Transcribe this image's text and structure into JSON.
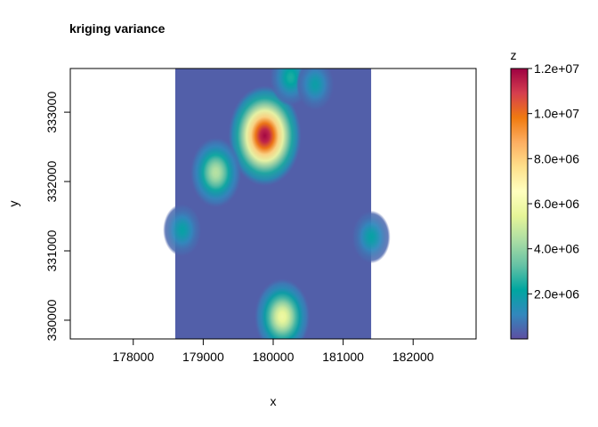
{
  "chart_data": {
    "type": "heatmap",
    "title": "kriging variance",
    "xlabel": "x",
    "ylabel": "y",
    "xlim": [
      177100,
      182900
    ],
    "ylim": [
      329730,
      333630
    ],
    "x_ticks": [
      178000,
      179000,
      180000,
      181000,
      182000
    ],
    "y_ticks": [
      330000,
      331000,
      332000,
      333000
    ],
    "x_tick_labels": [
      "178000",
      "179000",
      "180000",
      "181000",
      "182000"
    ],
    "y_tick_labels": [
      "330000",
      "331000",
      "332000",
      "333000"
    ],
    "data_extent": {
      "x": [
        178600,
        181400
      ],
      "y": [
        329730,
        333630
      ]
    },
    "grid": false,
    "colorbar": {
      "title": "z",
      "range": [
        0,
        12000000
      ],
      "ticks": [
        2000000,
        4000000,
        6000000,
        8000000,
        10000000,
        12000000
      ],
      "tick_labels": [
        "2.0e+06",
        "4.0e+06",
        "6.0e+06",
        "8.0e+06",
        "1.0e+07",
        "1.2e+07"
      ],
      "palette": [
        "#5E4FA2",
        "#3288BD",
        "#00A6A0",
        "#66C2A5",
        "#ABDDA4",
        "#E6F598",
        "#FFFFBF",
        "#FEE08B",
        "#FDAE61",
        "#F07A10",
        "#D53E4F",
        "#9E0142"
      ]
    },
    "background_value": 300000,
    "hotspots": [
      {
        "x": 179880,
        "y": 332660,
        "z": 11900000
      },
      {
        "x": 180130,
        "y": 330050,
        "z": 5800000
      },
      {
        "x": 179180,
        "y": 332130,
        "z": 4600000
      },
      {
        "x": 180250,
        "y": 333500,
        "z": 2500000
      },
      {
        "x": 180600,
        "y": 333400,
        "z": 1900000
      },
      {
        "x": 178700,
        "y": 331300,
        "z": 2000000
      },
      {
        "x": 181400,
        "y": 331200,
        "z": 2000000
      }
    ]
  }
}
